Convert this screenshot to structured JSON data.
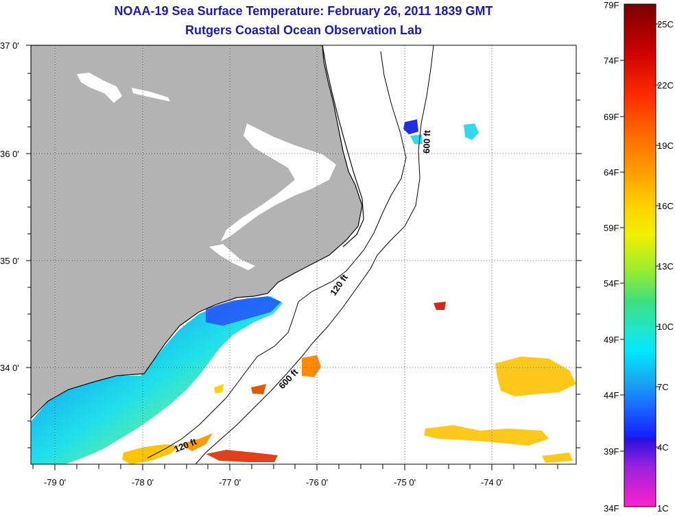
{
  "title": {
    "line1": "NOAA-19 Sea Surface Temperature:  February 26, 2011 1839 GMT",
    "line2": "Rutgers Coastal Ocean Observation Lab"
  },
  "map": {
    "lon_labels": [
      "-79 0'",
      "-78 0'",
      "-77 0'",
      "-76 0'",
      "-75 0'",
      "-74 0'"
    ],
    "lat_labels": [
      "37 0'",
      "36 0'",
      "35 0'",
      "34 0'"
    ],
    "contour_labels": {
      "c120_north": "120 ft",
      "c600_north": "600 ft",
      "c600_south": "600 ft",
      "c120_south": "120 ft"
    },
    "land_color": "#b3b3b3",
    "coast_color": "#000000"
  },
  "colorbar": {
    "fahrenheit_labels": [
      "79F",
      "74F",
      "69F",
      "64F",
      "59F",
      "54F",
      "49F",
      "44F",
      "39F",
      "34F"
    ],
    "celsius_labels": [
      "25C",
      "22C",
      "19C",
      "16C",
      "13C",
      "10C",
      "7C",
      "4C",
      "1C"
    ]
  }
}
